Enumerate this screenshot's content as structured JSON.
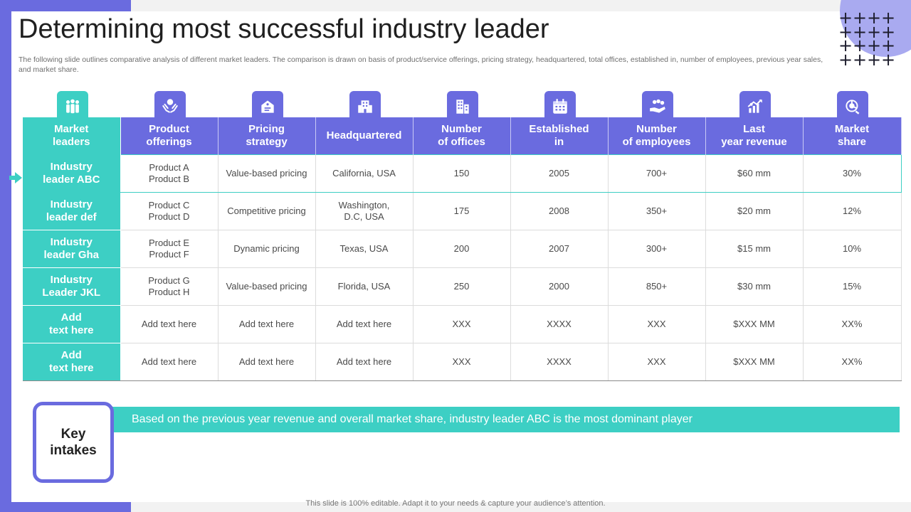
{
  "title": "Determining most successful industry leader",
  "subtitle": "The following slide outlines comparative analysis of different market leaders. The comparison is drawn on basis of product/service offerings, pricing strategy, headquartered, total offices, established in, number of employees, previous year sales, and market share.",
  "decor": {
    "plus_symbols": [
      "+",
      "+",
      "+",
      "+",
      "+",
      "+",
      "+",
      "+",
      "+",
      "+",
      "+",
      "+",
      "+",
      "+",
      "+",
      "+"
    ]
  },
  "colors": {
    "accent_purple": "#6a6bdf",
    "accent_teal": "#3dcfc4"
  },
  "header_icons": [
    "people-group-icon",
    "hands-offering-icon",
    "price-tag-icon",
    "office-building-icon",
    "city-buildings-icon",
    "calendar-icon",
    "hand-coins-icon",
    "growth-chart-icon",
    "pie-share-icon"
  ],
  "table": {
    "headers": [
      "Market\nleaders",
      "Product\nofferings",
      "Pricing\nstrategy",
      "Headquartered",
      "Number\nof offices",
      "Established\nin",
      "Number\nof employees",
      "Last\nyear revenue",
      "Market\nshare"
    ],
    "rows": [
      [
        "Industry\nleader ABC",
        "Product A\nProduct B",
        "Value-based  pricing",
        "California,  USA",
        "150",
        "2005",
        "700+",
        "$60  mm",
        "30%"
      ],
      [
        "Industry\nleader def",
        "Product C\nProduct D",
        "Competitive  pricing",
        "Washington,\nD.C, USA",
        "175",
        "2008",
        "350+",
        "$20  mm",
        "12%"
      ],
      [
        "Industry\nleader Gha",
        "Product E\nProduct F",
        "Dynamic pricing",
        "Texas,  USA",
        "200",
        "2007",
        "300+",
        "$15  mm",
        "10%"
      ],
      [
        "Industry\nLeader JKL",
        "Product G\nProduct H",
        "Value-based  pricing",
        "Florida,  USA",
        "250",
        "2000",
        "850+",
        "$30  mm",
        "15%"
      ],
      [
        "Add\ntext here",
        "Add text here",
        "Add text here",
        "Add text here",
        "XXX",
        "XXXX",
        "XXX",
        "$XXX  MM",
        "XX%"
      ],
      [
        "Add\ntext here",
        "Add text here",
        "Add text here",
        "Add text here",
        "XXX",
        "XXXX",
        "XXX",
        "$XXX  MM",
        "XX%"
      ]
    ]
  },
  "key_intakes": {
    "label": "Key\nintakes",
    "text": "Based on the previous year revenue  and overall market share,  industry  leader ABC is the most dominant player"
  },
  "footer": "This slide is 100% editable. Adapt it to your needs & capture your audience’s attention."
}
